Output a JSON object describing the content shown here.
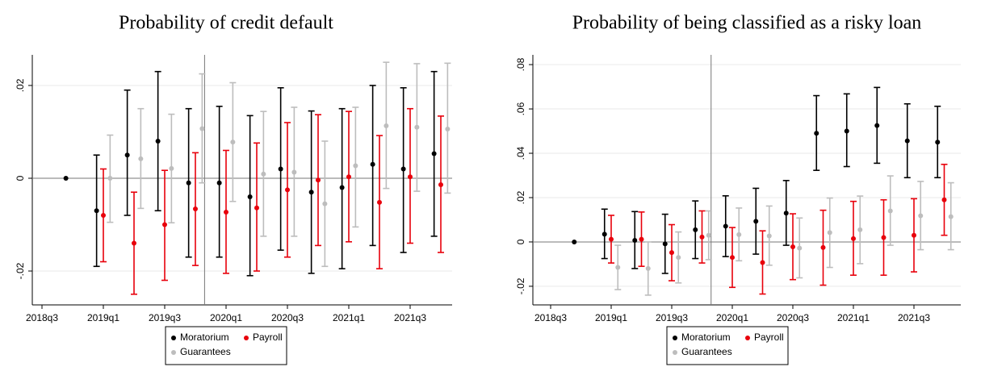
{
  "chart_data": [
    {
      "type": "errorbar",
      "title": "Probability of credit default",
      "categories": [
        "2018q3",
        null,
        "2019q1",
        null,
        "2019q3",
        null,
        "2020q1",
        null,
        "2020q3",
        null,
        "2021q1",
        null,
        "2021q3",
        null
      ],
      "ylim": [
        -0.0273,
        0.0266
      ],
      "yticks": [
        {
          "value": -0.02,
          "label": "-.02"
        },
        0,
        {
          "value": 0.02,
          "label": ".02"
        }
      ],
      "grid": true,
      "legend": "bottom",
      "series": [
        {
          "name": "Moratorium",
          "color": "#000000",
          "values": [
            null,
            0,
            -0.007,
            0.005,
            0.008,
            -0.001,
            -0.001,
            -0.004,
            0.002,
            -0.003,
            -0.002,
            0.003,
            0.002,
            0.0053
          ],
          "lower": [
            null,
            null,
            -0.019,
            -0.008,
            -0.007,
            -0.017,
            -0.017,
            -0.021,
            -0.0155,
            -0.0205,
            -0.0195,
            -0.0145,
            -0.016,
            -0.0125
          ],
          "upper": [
            null,
            null,
            0.005,
            0.019,
            0.023,
            0.015,
            0.0155,
            0.0135,
            0.0195,
            0.0145,
            0.015,
            0.02,
            0.0195,
            0.023
          ]
        },
        {
          "name": "Payroll",
          "color": "#e8000b",
          "values": [
            null,
            null,
            -0.008,
            -0.014,
            -0.01,
            -0.0066,
            -0.0073,
            -0.0064,
            -0.0025,
            -0.0004,
            0.0003,
            -0.0052,
            0.0003,
            -0.0014
          ],
          "lower": [
            null,
            null,
            -0.018,
            -0.025,
            -0.022,
            -0.0188,
            -0.0205,
            -0.02,
            -0.017,
            -0.0145,
            -0.0137,
            -0.0195,
            -0.014,
            -0.016
          ],
          "upper": [
            null,
            null,
            0.002,
            -0.003,
            0.0017,
            0.0055,
            0.006,
            0.0076,
            0.012,
            0.0137,
            0.0144,
            0.0092,
            0.015,
            0.0134
          ]
        },
        {
          "name": "Guarantees",
          "color": "#bdbdbd",
          "values": [
            null,
            null,
            0.0,
            0.0042,
            0.0021,
            0.0107,
            0.0078,
            0.0009,
            0.0013,
            -0.0055,
            0.0027,
            0.0113,
            0.011,
            0.0106
          ],
          "lower": [
            null,
            null,
            -0.0095,
            -0.0065,
            -0.0096,
            -0.001,
            -0.005,
            -0.0125,
            -0.0125,
            -0.019,
            -0.0105,
            -0.0022,
            -0.0028,
            -0.0032
          ],
          "upper": [
            null,
            null,
            0.0093,
            0.015,
            0.0138,
            0.0225,
            0.0206,
            0.0144,
            0.0153,
            0.008,
            0.0153,
            0.025,
            0.0247,
            0.0248
          ]
        }
      ]
    },
    {
      "type": "errorbar",
      "title": "Probability of being classified as a risky loan",
      "categories": [
        "2018q3",
        null,
        "2019q1",
        null,
        "2019q3",
        null,
        "2020q1",
        null,
        "2020q3",
        null,
        "2021q1",
        null,
        "2021q3",
        null
      ],
      "ylim": [
        -0.0284,
        0.0844
      ],
      "yticks": [
        {
          "value": -0.02,
          "label": "-.02"
        },
        0,
        {
          "value": 0.02,
          "label": ".02"
        },
        {
          "value": 0.04,
          "label": ".04"
        },
        {
          "value": 0.06,
          "label": ".06"
        },
        {
          "value": 0.08,
          "label": ".08"
        }
      ],
      "grid": true,
      "legend": "bottom",
      "series": [
        {
          "name": "Moratorium",
          "color": "#000000",
          "values": [
            null,
            0,
            0.0035,
            0.0007,
            -0.0009,
            0.0055,
            0.0071,
            0.0093,
            0.013,
            0.049,
            0.05,
            0.0525,
            0.0456,
            0.045
          ],
          "lower": [
            null,
            null,
            -0.0075,
            -0.012,
            -0.0142,
            -0.0075,
            -0.0066,
            -0.0055,
            -0.0015,
            0.0323,
            0.034,
            0.0355,
            0.029,
            0.029
          ],
          "upper": [
            null,
            null,
            0.0148,
            0.0137,
            0.0125,
            0.0185,
            0.0208,
            0.0242,
            0.0277,
            0.066,
            0.0668,
            0.0697,
            0.0623,
            0.0612
          ]
        },
        {
          "name": "Payroll",
          "color": "#e8000b",
          "values": [
            null,
            null,
            0.0012,
            0.0012,
            -0.0048,
            0.0022,
            -0.007,
            -0.0093,
            -0.0022,
            -0.0025,
            0.0015,
            0.002,
            0.003,
            0.019
          ],
          "lower": [
            null,
            null,
            -0.0095,
            -0.011,
            -0.0175,
            -0.0095,
            -0.0205,
            -0.0235,
            -0.017,
            -0.0195,
            -0.015,
            -0.015,
            -0.0135,
            0.003
          ],
          "upper": [
            null,
            null,
            0.012,
            0.0135,
            0.0078,
            0.014,
            0.0065,
            0.005,
            0.0127,
            0.0143,
            0.0183,
            0.019,
            0.0195,
            0.035
          ]
        },
        {
          "name": "Guarantees",
          "color": "#bdbdbd",
          "values": [
            null,
            null,
            -0.0115,
            -0.012,
            -0.007,
            0.003,
            0.0033,
            0.0027,
            -0.0028,
            0.0042,
            0.0055,
            0.014,
            0.0118,
            0.0114
          ],
          "lower": [
            null,
            null,
            -0.0215,
            -0.024,
            -0.0185,
            -0.008,
            -0.0085,
            -0.0105,
            -0.0162,
            -0.0115,
            -0.0098,
            -0.0015,
            -0.0035,
            -0.0035
          ],
          "upper": [
            null,
            null,
            -0.0015,
            0.0,
            0.0045,
            0.014,
            0.0153,
            0.0162,
            0.0108,
            0.0198,
            0.0207,
            0.0298,
            0.0273,
            0.0267
          ]
        }
      ]
    }
  ]
}
